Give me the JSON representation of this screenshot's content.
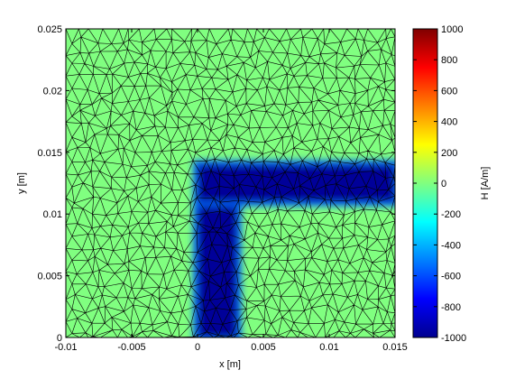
{
  "chart_data": {
    "type": "heatmap",
    "subtype": "fem-mesh-field",
    "xlabel": "x [m]",
    "ylabel": "y [m]",
    "xlim": [
      -0.01,
      0.015
    ],
    "ylim": [
      0,
      0.025
    ],
    "x_ticks": [
      "-0.01",
      "-0.005",
      "0",
      "0.005",
      "0.01",
      "0.015"
    ],
    "x_tick_values": [
      -0.01,
      -0.005,
      0,
      0.005,
      0.01,
      0.015
    ],
    "y_ticks": [
      "0",
      "0.005",
      "0.01",
      "0.015",
      "0.02",
      "0.025"
    ],
    "y_tick_values": [
      0,
      0.005,
      0.01,
      0.015,
      0.02,
      0.025
    ],
    "colorbar": {
      "label": "H [A/m]",
      "colormap": "jet",
      "range": [
        -1000,
        1000
      ],
      "ticks": [
        "-1000",
        "-800",
        "-600",
        "-400",
        "-200",
        "0",
        "200",
        "400",
        "600",
        "800",
        "1000"
      ],
      "tick_values": [
        -1000,
        -800,
        -600,
        -400,
        -200,
        0,
        200,
        400,
        600,
        800,
        1000
      ]
    },
    "field": {
      "background_value": 0,
      "l_shaped_region": {
        "vertical_leg": {
          "x": [
            0,
            0.003
          ],
          "y": [
            0,
            0.014
          ]
        },
        "horizontal_leg": {
          "x": [
            0,
            0.015
          ],
          "y": [
            0.011,
            0.014
          ]
        },
        "value": -1000
      }
    },
    "mesh": {
      "element": "triangle",
      "edge_color": "#000000"
    },
    "grid": false
  }
}
